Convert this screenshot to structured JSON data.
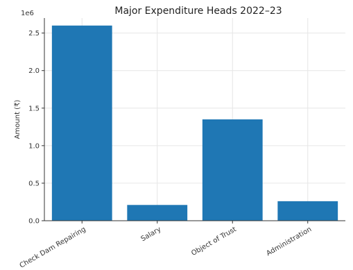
{
  "chart_data": {
    "type": "bar",
    "title": "Major Expenditure Heads 2022–23",
    "xlabel": "",
    "ylabel": "Amount (₹)",
    "y_offset_label": "1e6",
    "categories": [
      "Check Dam Repairing",
      "Salary",
      "Object of Trust",
      "Administration"
    ],
    "values": [
      2600000,
      210000,
      1350000,
      260000
    ],
    "ylim": [
      0,
      2700000
    ],
    "yticks": [
      0,
      500000,
      1000000,
      1500000,
      2000000,
      2500000
    ],
    "ytick_labels": [
      "0.0",
      "0.5",
      "1.0",
      "1.5",
      "2.0",
      "2.5"
    ],
    "grid": true,
    "bar_color": "#1f77b4",
    "x_tick_rotation_deg": -30
  }
}
